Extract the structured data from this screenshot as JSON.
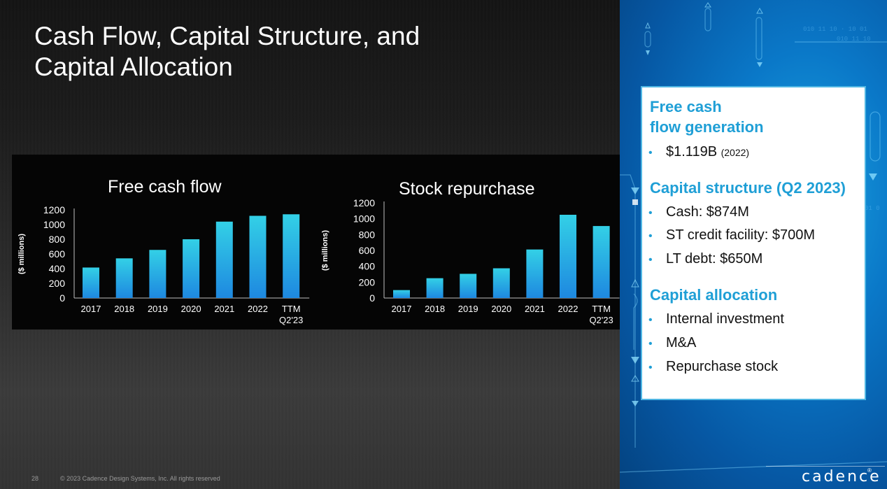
{
  "slide": {
    "title_line1": "Cash Flow, Capital Structure, and",
    "title_line2": "Capital Allocation",
    "page_number": "28",
    "copyright": "© 2023 Cadence Design Systems, Inc. All rights reserved",
    "logo_text": "cadence",
    "logo_mark": "®"
  },
  "colors": {
    "bar_top": "#33d0e6",
    "bar_bottom": "#1e88e0",
    "accent": "#1f9fd6",
    "panel_bg": "#050505"
  },
  "info_box": {
    "sections": [
      {
        "heading": [
          "Free cash",
          "flow generation"
        ],
        "bullets": [
          {
            "text": "$1.119B",
            "note": "(2022)"
          }
        ]
      },
      {
        "heading": [
          "Capital structure (Q2 2023)"
        ],
        "bullets": [
          {
            "text": "Cash: $874M"
          },
          {
            "text": "ST credit facility: $700M"
          },
          {
            "text": "LT debt: $650M"
          }
        ]
      },
      {
        "heading": [
          "Capital allocation"
        ],
        "bullets": [
          {
            "text": "Internal investment"
          },
          {
            "text": "M&A"
          },
          {
            "text": "Repurchase stock"
          }
        ]
      }
    ],
    "bullet_glyph": "•"
  },
  "chart_data": [
    {
      "type": "bar",
      "title": "Free cash flow",
      "ylabel": "($ millions)",
      "xlabel": "",
      "categories": [
        "2017",
        "2018",
        "2019",
        "2020",
        "2021",
        "2022",
        "TTM Q2'23"
      ],
      "values": [
        415,
        540,
        655,
        800,
        1040,
        1119,
        1140
      ],
      "ylim": [
        0,
        1200
      ],
      "yticks": [
        0,
        200,
        400,
        600,
        800,
        1000,
        1200
      ],
      "grid": false,
      "legend": "none"
    },
    {
      "type": "bar",
      "title": "Stock repurchase",
      "ylabel": "($ millions)",
      "xlabel": "",
      "categories": [
        "2017",
        "2018",
        "2019",
        "2020",
        "2021",
        "2022",
        "TTM Q2'23"
      ],
      "values": [
        100,
        250,
        305,
        375,
        612,
        1050,
        908
      ],
      "ylim": [
        0,
        1200
      ],
      "yticks": [
        0,
        200,
        400,
        600,
        800,
        1000,
        1200
      ],
      "grid": false,
      "legend": "none"
    }
  ]
}
